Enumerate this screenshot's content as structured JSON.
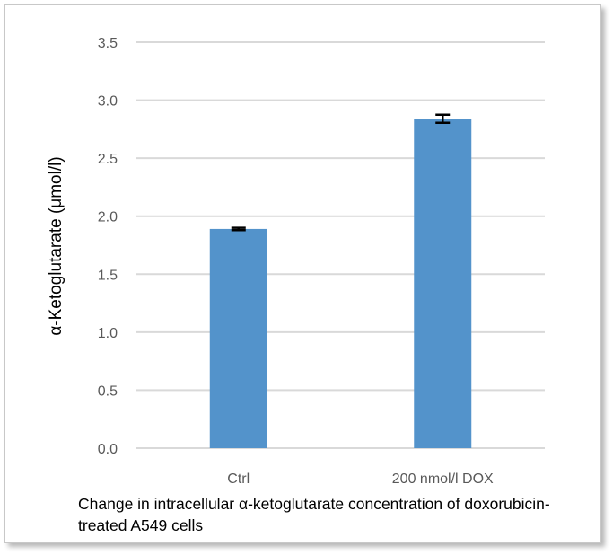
{
  "chart_data": {
    "type": "bar",
    "categories": [
      "Ctrl",
      "200 nmol/l DOX"
    ],
    "values": [
      1.89,
      2.84
    ],
    "errors": [
      0.01,
      0.035
    ],
    "ylabel": "α-Ketoglutarate (μmol/l)",
    "xlabel": "",
    "title": "",
    "ylim": [
      0,
      3.5
    ],
    "yticks": [
      0.0,
      0.5,
      1.0,
      1.5,
      2.0,
      2.5,
      3.0,
      3.5
    ],
    "grid": true,
    "bar_color": "#5393cb",
    "gridline_color": "#d9d9d9",
    "caption": "Change in intracellular α-ketoglutarate concentration of doxorubicin-treated A549 cells"
  }
}
